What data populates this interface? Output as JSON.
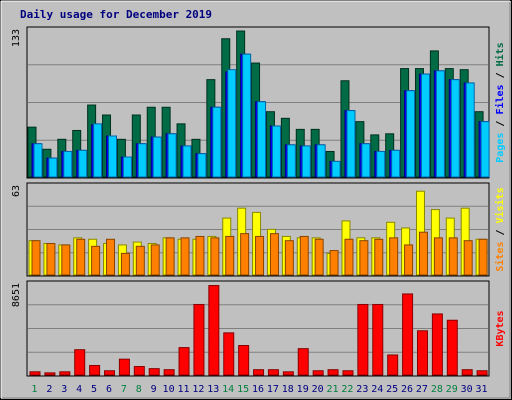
{
  "chart_data": [
    {
      "type": "bar",
      "title": "Daily usage for December 2019",
      "panel": "top",
      "ymax_label": "133",
      "ylim": [
        0,
        133
      ],
      "categories": [
        "1",
        "2",
        "3",
        "4",
        "5",
        "6",
        "7",
        "8",
        "9",
        "10",
        "11",
        "12",
        "13",
        "14",
        "15",
        "16",
        "17",
        "18",
        "19",
        "20",
        "21",
        "22",
        "23",
        "24",
        "25",
        "26",
        "27",
        "28",
        "29",
        "30",
        "31"
      ],
      "series": [
        {
          "name": "Hits",
          "color": "#006b45",
          "values": [
            46,
            26,
            35,
            43,
            66,
            57,
            35,
            57,
            64,
            64,
            49,
            35,
            89,
            126,
            133,
            104,
            60,
            54,
            44,
            44,
            24,
            88,
            51,
            39,
            40,
            99,
            99,
            115,
            99,
            98,
            60
          ]
        },
        {
          "name": "Files",
          "color": "#0000ff",
          "values": [
            31,
            18,
            24,
            25,
            48,
            38,
            19,
            31,
            37,
            40,
            29,
            22,
            64,
            96,
            112,
            69,
            47,
            30,
            29,
            30,
            15,
            61,
            31,
            24,
            25,
            79,
            94,
            97,
            89,
            86,
            51
          ]
        },
        {
          "name": "Pages",
          "color": "#00ccff",
          "values": [
            31,
            18,
            24,
            25,
            49,
            38,
            19,
            31,
            37,
            40,
            29,
            22,
            64,
            98,
            112,
            69,
            47,
            30,
            29,
            30,
            15,
            61,
            31,
            24,
            25,
            79,
            94,
            97,
            89,
            86,
            51
          ]
        }
      ],
      "legend_labels": [
        "Pages",
        "Files",
        "Hits"
      ]
    },
    {
      "type": "bar",
      "panel": "middle",
      "ymax_label": "63",
      "ylim": [
        0,
        63
      ],
      "categories": [
        "1",
        "2",
        "3",
        "4",
        "5",
        "6",
        "7",
        "8",
        "9",
        "10",
        "11",
        "12",
        "13",
        "14",
        "15",
        "16",
        "17",
        "18",
        "19",
        "20",
        "21",
        "22",
        "23",
        "24",
        "25",
        "26",
        "27",
        "28",
        "29",
        "30",
        "31"
      ],
      "series": [
        {
          "name": "Visits",
          "color": "#ffff00",
          "values": [
            25,
            23,
            22,
            27,
            26,
            23,
            22,
            24,
            23,
            27,
            26,
            26,
            28,
            41,
            48,
            45,
            33,
            28,
            27,
            27,
            16,
            39,
            27,
            27,
            38,
            34,
            60,
            47,
            41,
            48,
            26
          ]
        },
        {
          "name": "Sites",
          "color": "#ff8000",
          "values": [
            25,
            23,
            22,
            26,
            21,
            26,
            16,
            21,
            22,
            27,
            27,
            28,
            27,
            28,
            30,
            28,
            30,
            25,
            28,
            26,
            18,
            26,
            25,
            26,
            27,
            22,
            31,
            27,
            27,
            25,
            26
          ]
        }
      ],
      "legend_labels": [
        "Sites",
        "Visits"
      ]
    },
    {
      "type": "bar",
      "panel": "bottom",
      "ymax_label": "8651",
      "ylim": [
        0,
        8651
      ],
      "categories": [
        "1",
        "2",
        "3",
        "4",
        "5",
        "6",
        "7",
        "8",
        "9",
        "10",
        "11",
        "12",
        "13",
        "14",
        "15",
        "16",
        "17",
        "18",
        "19",
        "20",
        "21",
        "22",
        "23",
        "24",
        "25",
        "26",
        "27",
        "28",
        "29",
        "30",
        "31"
      ],
      "series": [
        {
          "name": "KBytes",
          "color": "#ff0000",
          "values": [
            400,
            300,
            400,
            2500,
            1000,
            500,
            1600,
            900,
            700,
            600,
            2700,
            6800,
            8600,
            4100,
            2900,
            600,
            600,
            400,
            2600,
            500,
            600,
            500,
            6800,
            6800,
            2000,
            7800,
            4300,
            5900,
            5300,
            600,
            500
          ]
        }
      ],
      "legend_labels": [
        "KBytes"
      ]
    }
  ],
  "x_label_colors": {
    "weekday": "#000080",
    "weekend": "#008040"
  },
  "weekend_days": [
    1,
    7,
    8,
    14,
    15,
    21,
    22,
    28,
    29
  ]
}
